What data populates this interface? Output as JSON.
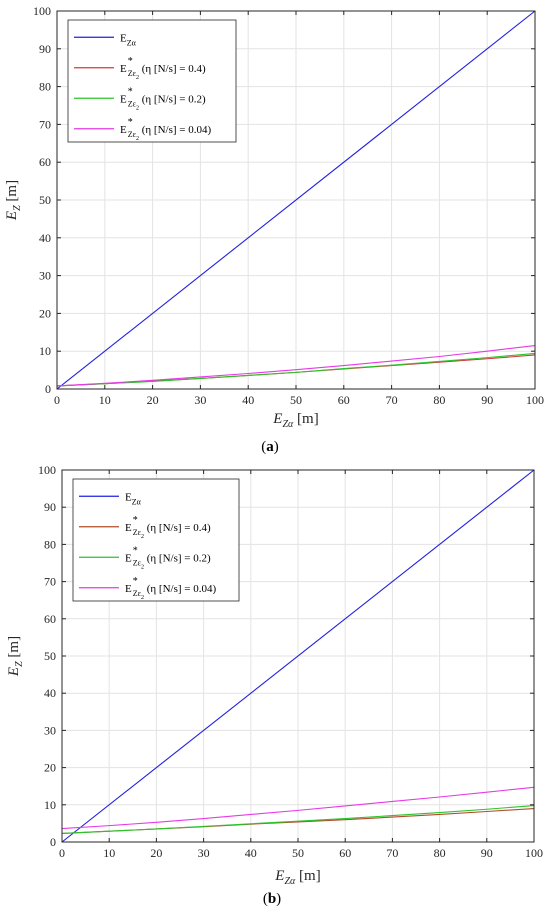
{
  "chart_data": [
    {
      "type": "line",
      "caption_open": "(",
      "caption_letter": "a",
      "caption_close": ")",
      "xlabel_sym": "E",
      "xlabel_sub": "Zα",
      "xlabel_unit": "[m]",
      "ylabel_sym": "E",
      "ylabel_sub": "Z",
      "ylabel_unit": "[m]",
      "xlim": [
        0,
        100
      ],
      "ylim": [
        0,
        100
      ],
      "xticks": [
        0,
        10,
        20,
        30,
        40,
        50,
        60,
        70,
        80,
        90,
        100
      ],
      "yticks": [
        0,
        10,
        20,
        30,
        40,
        50,
        60,
        70,
        80,
        90,
        100
      ],
      "grid": true,
      "legend_position": "top-left",
      "series": [
        {
          "name_main": "E",
          "name_sub": "Zα",
          "name_tail": "",
          "color": "#2020e0",
          "x": [
            0,
            100
          ],
          "y": [
            0,
            100
          ]
        },
        {
          "name_main": "E",
          "name_sub": "Zε",
          "name_sub2": "2",
          "name_sup": "*",
          "name_tail": "(η [N/s] = 0.4)",
          "color": "#d43a3a",
          "x": [
            0,
            10,
            20,
            30,
            40,
            50,
            60,
            70,
            80,
            90,
            100
          ],
          "y": [
            0.8,
            1.4,
            2.1,
            2.8,
            3.6,
            4.4,
            5.3,
            6.2,
            7.1,
            8.0,
            9.0
          ]
        },
        {
          "name_main": "E",
          "name_sub": "Zε",
          "name_sub2": "2",
          "name_sup": "*",
          "name_tail": "(η [N/s] = 0.2)",
          "color": "#2ac42a",
          "x": [
            0,
            10,
            20,
            30,
            40,
            50,
            60,
            70,
            80,
            90,
            100
          ],
          "y": [
            0.8,
            1.4,
            2.0,
            2.8,
            3.6,
            4.4,
            5.4,
            6.3,
            7.3,
            8.3,
            9.4
          ]
        },
        {
          "name_main": "E",
          "name_sub": "Zε",
          "name_sub2": "2",
          "name_sup": "*",
          "name_tail": "(η [N/s] = 0.04)",
          "color": "#e63ae6",
          "x": [
            0,
            10,
            20,
            30,
            40,
            50,
            60,
            70,
            80,
            90,
            100
          ],
          "y": [
            0.8,
            1.5,
            2.3,
            3.2,
            4.1,
            5.1,
            6.2,
            7.4,
            8.6,
            10.0,
            11.5
          ]
        }
      ]
    },
    {
      "type": "line",
      "caption_open": "(",
      "caption_letter": "b",
      "caption_close": ")",
      "xlabel_sym": "E",
      "xlabel_sub": "Zα",
      "xlabel_unit": "[m]",
      "ylabel_sym": "E",
      "ylabel_sub": "Z",
      "ylabel_unit": "[m]",
      "xlim": [
        0,
        100
      ],
      "ylim": [
        0,
        100
      ],
      "xticks": [
        0,
        10,
        20,
        30,
        40,
        50,
        60,
        70,
        80,
        90,
        100
      ],
      "yticks": [
        0,
        10,
        20,
        30,
        40,
        50,
        60,
        70,
        80,
        90,
        100
      ],
      "grid": true,
      "legend_position": "top-left",
      "series": [
        {
          "name_main": "E",
          "name_sub": "Zα",
          "name_tail": "",
          "color": "#2020e0",
          "x": [
            0,
            100
          ],
          "y": [
            0,
            100
          ]
        },
        {
          "name_main": "E",
          "name_sub": "Zε",
          "name_sub2": "2",
          "name_sup": "*",
          "name_tail": "(η [N/s] = 0.4)",
          "color": "#b34d2a",
          "x": [
            0,
            10,
            20,
            30,
            40,
            50,
            60,
            70,
            80,
            90,
            100
          ],
          "y": [
            2.3,
            2.9,
            3.5,
            4.1,
            4.8,
            5.4,
            6.0,
            6.7,
            7.4,
            8.2,
            9.0
          ]
        },
        {
          "name_main": "E",
          "name_sub": "Zε",
          "name_sub2": "2",
          "name_sup": "*",
          "name_tail": "(η [N/s] = 0.2)",
          "color": "#2ac42a",
          "x": [
            0,
            10,
            20,
            30,
            40,
            50,
            60,
            70,
            80,
            90,
            100
          ],
          "y": [
            2.3,
            2.9,
            3.5,
            4.2,
            4.9,
            5.6,
            6.3,
            7.1,
            7.9,
            8.8,
            9.8
          ]
        },
        {
          "name_main": "E",
          "name_sub": "Zε",
          "name_sub2": "2",
          "name_sup": "*",
          "name_tail": "(η [N/s] = 0.04)",
          "color": "#e63ae6",
          "x": [
            0,
            10,
            20,
            30,
            40,
            50,
            60,
            70,
            80,
            90,
            100
          ],
          "y": [
            3.6,
            4.4,
            5.3,
            6.3,
            7.4,
            8.5,
            9.7,
            10.9,
            12.1,
            13.4,
            14.7
          ]
        }
      ]
    }
  ]
}
